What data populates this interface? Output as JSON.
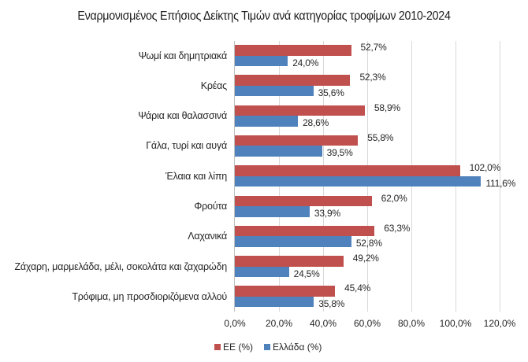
{
  "chart_data": {
    "type": "bar",
    "orientation": "horizontal",
    "title": "Εναρμονισμένος Επήσιος Δείκτης Τιμών ανά κατηγορίας τροφίμων 2010-2024",
    "xlabel": "",
    "ylabel": "",
    "xlim": [
      0,
      120
    ],
    "xticks": [
      "0,0%",
      "20,0%",
      "40,0%",
      "60,0%",
      "80,0%",
      "100,0%",
      "120,0%"
    ],
    "grid": true,
    "legend_position": "bottom",
    "categories": [
      "Ψωμί και δημητριακά",
      "Κρέας",
      "Ψάρια και θαλασσινά",
      "Γάλα, τυρί και αυγά",
      "Έλαια και λίπη",
      "Φρούτα",
      "Λαχανικά",
      "Ζάχαρη, μαρμελάδα, μέλι, σοκολάτα και ζαχαρώδη",
      "Τρόφιμα, μη προσδιοριζόμενα αλλού"
    ],
    "series": [
      {
        "name": "ΕΕ (%)",
        "color": "#c0504d",
        "values": [
          52.7,
          52.3,
          58.9,
          55.8,
          102.0,
          62.0,
          63.3,
          49.2,
          45.4
        ],
        "labels": [
          "52,7%",
          "52,3%",
          "58,9%",
          "55,8%",
          "102,0%",
          "62,0%",
          "63,3%",
          "49,2%",
          "45,4%"
        ]
      },
      {
        "name": "Ελλάδα (%)",
        "color": "#4f81bd",
        "values": [
          24.0,
          35.6,
          28.6,
          39.5,
          111.6,
          33.9,
          52.8,
          24.5,
          35.8
        ],
        "labels": [
          "24,0%",
          "35,6%",
          "28,6%",
          "39,5%",
          "111,6%",
          "33,9%",
          "52,8%",
          "24,5%",
          "35,8%"
        ]
      }
    ]
  }
}
